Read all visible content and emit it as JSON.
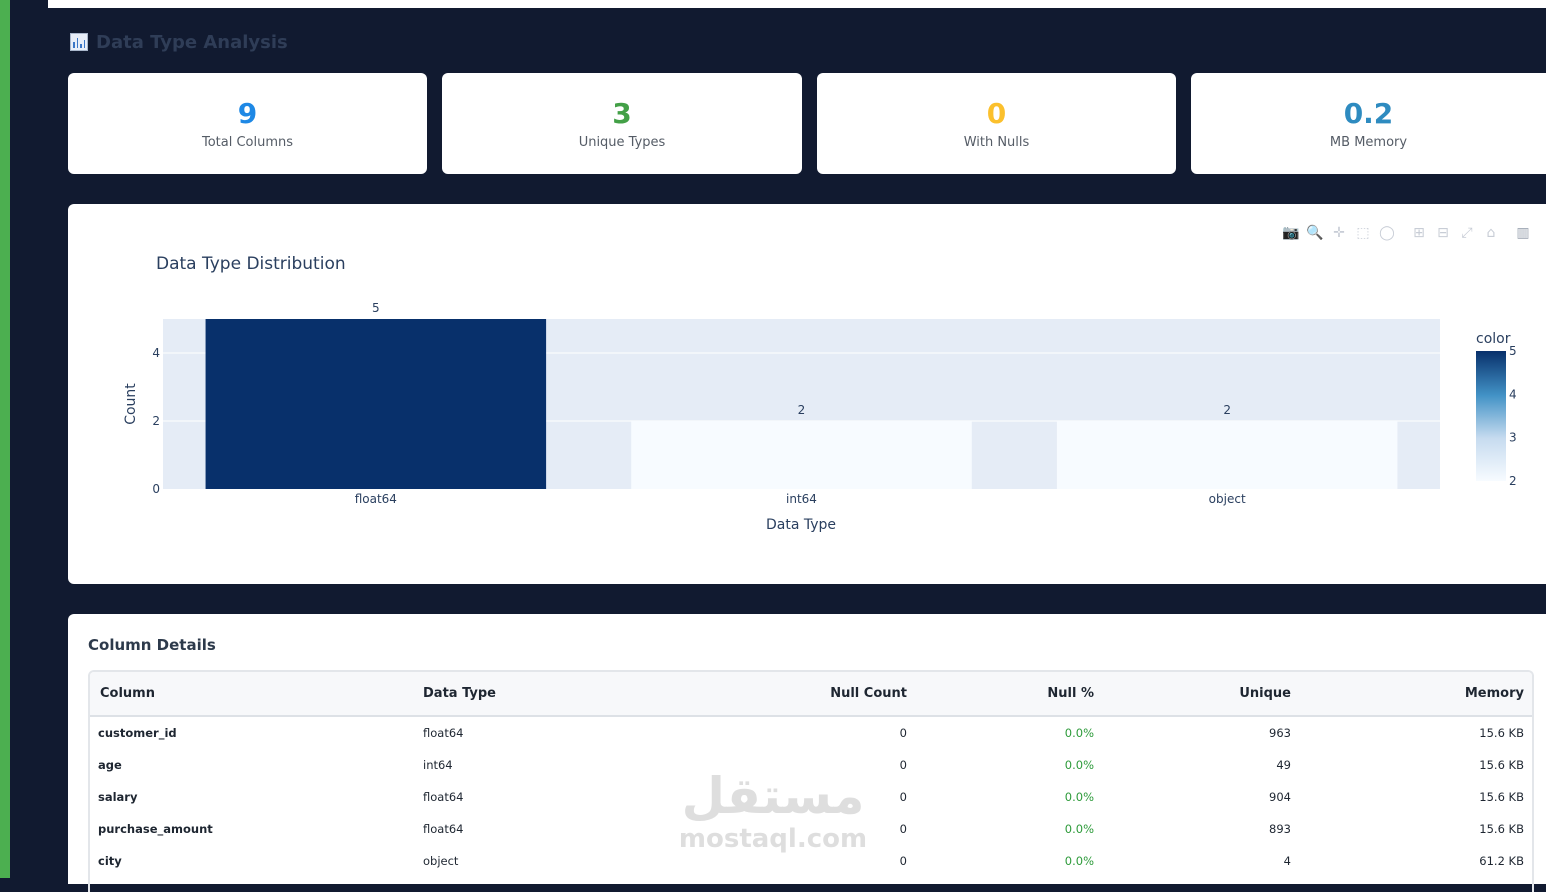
{
  "section": {
    "title": "Data Type Analysis",
    "icon": "bar-chart-icon"
  },
  "stats": [
    {
      "value": "9",
      "label": "Total Columns",
      "color": "#1e88e5"
    },
    {
      "value": "3",
      "label": "Unique Types",
      "color": "#43a047"
    },
    {
      "value": "0",
      "label": "With Nulls",
      "color": "#fbc02d"
    },
    {
      "value": "0.2",
      "label": "MB Memory",
      "color": "#2e8bc0"
    }
  ],
  "chart_data": {
    "type": "bar",
    "title": "Data Type Distribution",
    "xlabel": "Data Type",
    "ylabel": "Count",
    "categories": [
      "float64",
      "int64",
      "object"
    ],
    "values": [
      5,
      2,
      2
    ],
    "data_labels": [
      "5",
      "2",
      "2"
    ],
    "ylim": [
      0,
      5.0
    ],
    "yticks": [
      0,
      2,
      4
    ],
    "grid": true,
    "plot_bg": "#e5ecf6",
    "colorscale": {
      "title": "color",
      "min": 2,
      "max": 5,
      "ticks": [
        2,
        3,
        4,
        5
      ],
      "low_color": "#f7fbff",
      "high_color": "#08306b"
    }
  },
  "modebar": [
    "camera-icon",
    "zoom-icon",
    "pan-icon",
    "box-select-icon",
    "lasso-icon",
    "zoom-in-icon",
    "zoom-out-icon",
    "autoscale-icon",
    "home-icon",
    "plotly-logo-icon"
  ],
  "table": {
    "title": "Column Details",
    "headers": [
      "Column",
      "Data Type",
      "Null Count",
      "Null %",
      "Unique",
      "Memory"
    ],
    "rows": [
      {
        "column": "customer_id",
        "dtype": "float64",
        "null_count": "0",
        "null_pct": "0.0%",
        "unique": "963",
        "memory": "15.6 KB"
      },
      {
        "column": "age",
        "dtype": "int64",
        "null_count": "0",
        "null_pct": "0.0%",
        "unique": "49",
        "memory": "15.6 KB"
      },
      {
        "column": "salary",
        "dtype": "float64",
        "null_count": "0",
        "null_pct": "0.0%",
        "unique": "904",
        "memory": "15.6 KB"
      },
      {
        "column": "purchase_amount",
        "dtype": "float64",
        "null_count": "0",
        "null_pct": "0.0%",
        "unique": "893",
        "memory": "15.6 KB"
      },
      {
        "column": "city",
        "dtype": "object",
        "null_count": "0",
        "null_pct": "0.0%",
        "unique": "4",
        "memory": "61.2 KB"
      }
    ]
  },
  "watermark": {
    "arabic": "مستقل",
    "latin": "mostaql.com"
  }
}
